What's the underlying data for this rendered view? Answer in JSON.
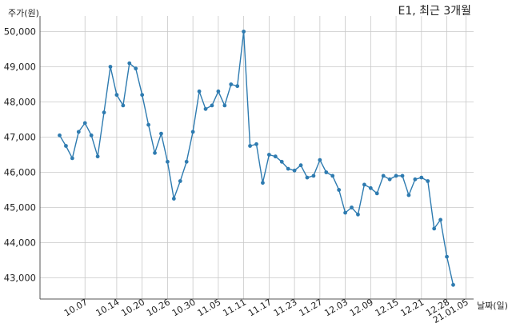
{
  "chart_data": {
    "type": "line",
    "title": "E1, 최근 3개월",
    "ylabel": "주가(원)",
    "xlabel": "날짜(일)",
    "ylim": [
      42400,
      50500
    ],
    "yticks": [
      43000,
      44000,
      45000,
      46000,
      47000,
      48000,
      49000,
      50000
    ],
    "ytick_labels": [
      "43,000",
      "44,000",
      "45,000",
      "46,000",
      "47,000",
      "48,000",
      "49,000",
      "50,000"
    ],
    "grid": true,
    "line_color": "#2e7bb0",
    "xtick_labels": [
      "10.07",
      "10.14",
      "10.20",
      "10.26",
      "10.30",
      "11.05",
      "11.11",
      "11.17",
      "11.23",
      "11.27",
      "12.03",
      "12.09",
      "12.15",
      "12.21",
      "12.28",
      "21.01.05"
    ],
    "xtick_index": [
      4,
      9,
      13,
      17,
      21,
      25,
      29,
      33,
      37,
      41,
      45,
      49,
      53,
      57,
      61,
      64
    ],
    "values": [
      47050,
      46750,
      46400,
      47150,
      47400,
      47050,
      46450,
      47700,
      49000,
      48200,
      47900,
      49100,
      48950,
      48200,
      47350,
      46550,
      47100,
      46300,
      45250,
      45750,
      46300,
      47150,
      48300,
      47800,
      47900,
      48300,
      47900,
      48500,
      48450,
      50000,
      46750,
      46800,
      45700,
      46500,
      46450,
      46300,
      46100,
      46050,
      46200,
      45850,
      45900,
      46350,
      46000,
      45900,
      45500,
      44850,
      45000,
      44800,
      45650,
      45550,
      45400,
      45900,
      45800,
      45900,
      45900,
      45350,
      45800,
      45850,
      45750,
      44400,
      44650,
      43600,
      42800
    ]
  }
}
